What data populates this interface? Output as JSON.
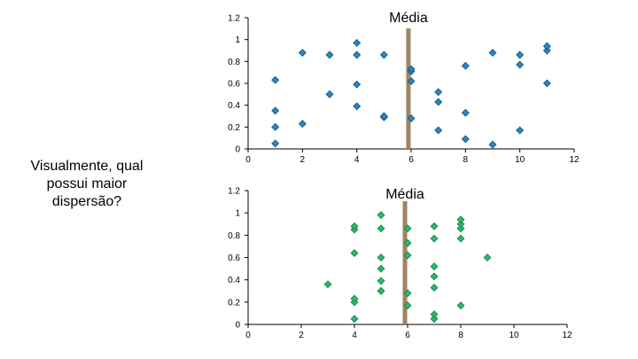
{
  "question": "Visualmente, qual possui maior dispersão?",
  "colors": {
    "mean_line": "#A08460",
    "series_top_fill": "#2E86C1",
    "series_top_stroke": "#1A5E8A",
    "series_bottom_fill": "#2EB872",
    "series_bottom_stroke": "#1E8A50"
  },
  "chart_data": [
    {
      "type": "scatter",
      "title": "",
      "xlabel": "",
      "ylabel": "",
      "xlim": [
        0,
        12
      ],
      "ylim": [
        0,
        1.2
      ],
      "xticks": [
        0,
        2,
        4,
        6,
        8,
        10,
        12
      ],
      "yticks": [
        0,
        0.2,
        0.4,
        0.6,
        0.8,
        1,
        1.2
      ],
      "grid": false,
      "mean_line": {
        "label": "Média",
        "x": 5.9
      },
      "marker": "diamond",
      "series": [
        {
          "points": [
            [
              1,
              0.05
            ],
            [
              1,
              0.2
            ],
            [
              1,
              0.35
            ],
            [
              1,
              0.63
            ],
            [
              2,
              0.23
            ],
            [
              2,
              0.88
            ],
            [
              3,
              0.5
            ],
            [
              3,
              0.86
            ],
            [
              4,
              0.39
            ],
            [
              4,
              0.59
            ],
            [
              4,
              0.86
            ],
            [
              4,
              0.97
            ],
            [
              5,
              0.29
            ],
            [
              5,
              0.3
            ],
            [
              5,
              0.86
            ],
            [
              6,
              0.28
            ],
            [
              6,
              0.62
            ],
            [
              6,
              0.71
            ],
            [
              6,
              0.73
            ],
            [
              7,
              0.17
            ],
            [
              7,
              0.43
            ],
            [
              7,
              0.52
            ],
            [
              8,
              0.09
            ],
            [
              8,
              0.33
            ],
            [
              8,
              0.76
            ],
            [
              9,
              0.04
            ],
            [
              9,
              0.88
            ],
            [
              10,
              0.17
            ],
            [
              10,
              0.77
            ],
            [
              10,
              0.86
            ],
            [
              11,
              0.6
            ],
            [
              11,
              0.9
            ],
            [
              11,
              0.94
            ]
          ]
        }
      ]
    },
    {
      "type": "scatter",
      "title": "",
      "xlabel": "",
      "ylabel": "",
      "xlim": [
        0,
        12
      ],
      "ylim": [
        0,
        1.2
      ],
      "xticks": [
        0,
        2,
        4,
        6,
        8,
        10,
        12
      ],
      "yticks": [
        0,
        0.2,
        0.4,
        0.6,
        0.8,
        1,
        1.2
      ],
      "grid": false,
      "mean_line": {
        "label": "Média",
        "x": 5.9
      },
      "marker": "diamond",
      "series": [
        {
          "points": [
            [
              3,
              0.36
            ],
            [
              4,
              0.05
            ],
            [
              4,
              0.2
            ],
            [
              4,
              0.23
            ],
            [
              4,
              0.64
            ],
            [
              4,
              0.85
            ],
            [
              4,
              0.88
            ],
            [
              5,
              0.3
            ],
            [
              5,
              0.3
            ],
            [
              5,
              0.39
            ],
            [
              5,
              0.5
            ],
            [
              5,
              0.6
            ],
            [
              5,
              0.86
            ],
            [
              5,
              0.98
            ],
            [
              6,
              0.17
            ],
            [
              6,
              0.28
            ],
            [
              6,
              0.62
            ],
            [
              6,
              0.73
            ],
            [
              6,
              0.86
            ],
            [
              7,
              0.05
            ],
            [
              7,
              0.09
            ],
            [
              7,
              0.33
            ],
            [
              7,
              0.43
            ],
            [
              7,
              0.52
            ],
            [
              7,
              0.77
            ],
            [
              7,
              0.88
            ],
            [
              8,
              0.17
            ],
            [
              8,
              0.77
            ],
            [
              8,
              0.86
            ],
            [
              8,
              0.9
            ],
            [
              8,
              0.94
            ],
            [
              9,
              0.6
            ]
          ]
        }
      ]
    }
  ]
}
